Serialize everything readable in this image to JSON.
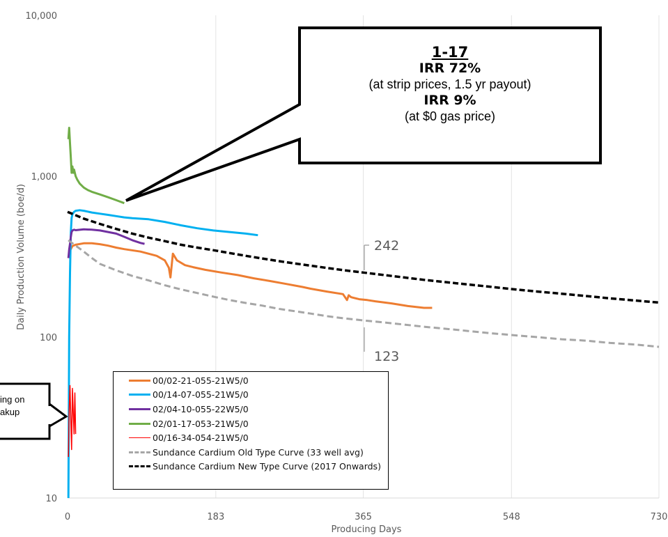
{
  "chart_data": {
    "type": "line",
    "xlabel": "Producing Days",
    "ylabel": "Daily Production Volume (boe/d)",
    "y_scale": "log",
    "xlim": [
      0,
      730
    ],
    "ylim": [
      10,
      10000
    ],
    "x_ticks": [
      "0",
      "183",
      "365",
      "548",
      "730"
    ],
    "y_ticks": [
      "10",
      "100",
      "1,000",
      "10,000"
    ],
    "grid": "vertical gridlines",
    "legend_position": "bottom-left",
    "series": [
      {
        "name": "00/02-21-055-21W5/0",
        "color": "#ED7D31",
        "width": 3,
        "dash": "",
        "x": [
          1,
          3,
          6,
          10,
          20,
          30,
          40,
          50,
          60,
          70,
          90,
          110,
          120,
          125,
          127,
          130,
          135,
          145,
          155,
          170,
          190,
          210,
          230,
          250,
          270,
          290,
          300,
          320,
          340,
          345,
          347,
          350,
          360,
          370,
          380,
          400,
          420,
          440,
          450
        ],
        "y": [
          310,
          345,
          368,
          375,
          383,
          383,
          378,
          370,
          360,
          352,
          340,
          320,
          300,
          270,
          235,
          330,
          300,
          280,
          272,
          262,
          252,
          243,
          232,
          223,
          214,
          205,
          200,
          192,
          185,
          170,
          182,
          177,
          172,
          170,
          167,
          162,
          156,
          152,
          152
        ]
      },
      {
        "name": "00/14-07-055-21W5/0",
        "color": "#00B0F0",
        "width": 3,
        "dash": "",
        "x": [
          1,
          2,
          3,
          4,
          5,
          6,
          8,
          10,
          15,
          20,
          30,
          40,
          50,
          60,
          70,
          80,
          100,
          120,
          140,
          160,
          180,
          200,
          220,
          235
        ],
        "y": [
          10,
          100,
          250,
          450,
          550,
          580,
          600,
          610,
          615,
          610,
          595,
          585,
          575,
          565,
          555,
          548,
          540,
          520,
          495,
          475,
          460,
          450,
          440,
          430
        ]
      },
      {
        "name": "02/04-10-055-22W5/0",
        "color": "#7030A0",
        "width": 3,
        "dash": "",
        "x": [
          1,
          2,
          3,
          4,
          5,
          6,
          8,
          10,
          20,
          30,
          40,
          50,
          60,
          70,
          80,
          90,
          95
        ],
        "y": [
          310,
          350,
          380,
          420,
          450,
          460,
          465,
          462,
          468,
          465,
          460,
          450,
          440,
          420,
          400,
          385,
          380
        ]
      },
      {
        "name": "02/01-17-053-21W5/0",
        "color": "#70AD47",
        "width": 3,
        "dash": "",
        "x": [
          1,
          2,
          3,
          4,
          5,
          6,
          7,
          8,
          10,
          12,
          15,
          20,
          25,
          30,
          40,
          50,
          60,
          70
        ],
        "y": [
          1700,
          2000,
          1600,
          1300,
          1050,
          1150,
          1050,
          1100,
          1000,
          950,
          900,
          850,
          820,
          800,
          770,
          740,
          710,
          680
        ]
      },
      {
        "name": "00/16-34-054-21W5/0",
        "color": "#FF0000",
        "width": 1.5,
        "dash": "",
        "x": [
          1,
          2,
          3,
          4,
          5,
          6,
          7,
          8,
          9,
          10
        ],
        "y": [
          18,
          35,
          50,
          30,
          20,
          48,
          35,
          25,
          45,
          25
        ]
      },
      {
        "name": "Sundance Cardium Old Type Curve (33 well avg)",
        "color": "#A6A6A6",
        "width": 3,
        "dash": "9,5",
        "x": [
          1,
          10,
          20,
          30,
          40,
          60,
          80,
          100,
          120,
          140,
          160,
          183,
          200,
          220,
          240,
          260,
          280,
          300,
          320,
          340,
          365,
          400,
          440,
          480,
          520,
          548,
          580,
          610,
          640,
          670,
          700,
          730
        ],
        "y": [
          400,
          370,
          340,
          310,
          285,
          260,
          240,
          225,
          210,
          198,
          188,
          177,
          170,
          163,
          157,
          150,
          145,
          140,
          135,
          131,
          127,
          122,
          116,
          111,
          106,
          103,
          100,
          97,
          95,
          92,
          90,
          87
        ]
      },
      {
        "name": "Sundance Cardium New Type Curve (2017 Onwards)",
        "color": "#000000",
        "width": 3.5,
        "dash": "8,4",
        "x": [
          0,
          20,
          40,
          60,
          80,
          100,
          120,
          140,
          160,
          183,
          200,
          220,
          240,
          260,
          280,
          300,
          320,
          340,
          365,
          400,
          440,
          480,
          520,
          548,
          580,
          610,
          640,
          670,
          700,
          730
        ],
        "y": [
          600,
          545,
          505,
          470,
          440,
          415,
          395,
          375,
          360,
          345,
          333,
          320,
          308,
          297,
          287,
          278,
          269,
          261,
          252,
          240,
          227,
          216,
          206,
          199,
          192,
          186,
          180,
          174,
          169,
          164
        ]
      }
    ],
    "annotations": {
      "curve_end_new": "242",
      "curve_end_old": "123"
    }
  },
  "callout": {
    "title": "1-17",
    "line1": "IRR 72%",
    "line2": "(at strip prices, 1.5 yr payout)",
    "line3": "IRR 9%",
    "line4": "(at $0 gas price)"
  },
  "note": {
    "line1": "ing on",
    "line2": "akup"
  }
}
